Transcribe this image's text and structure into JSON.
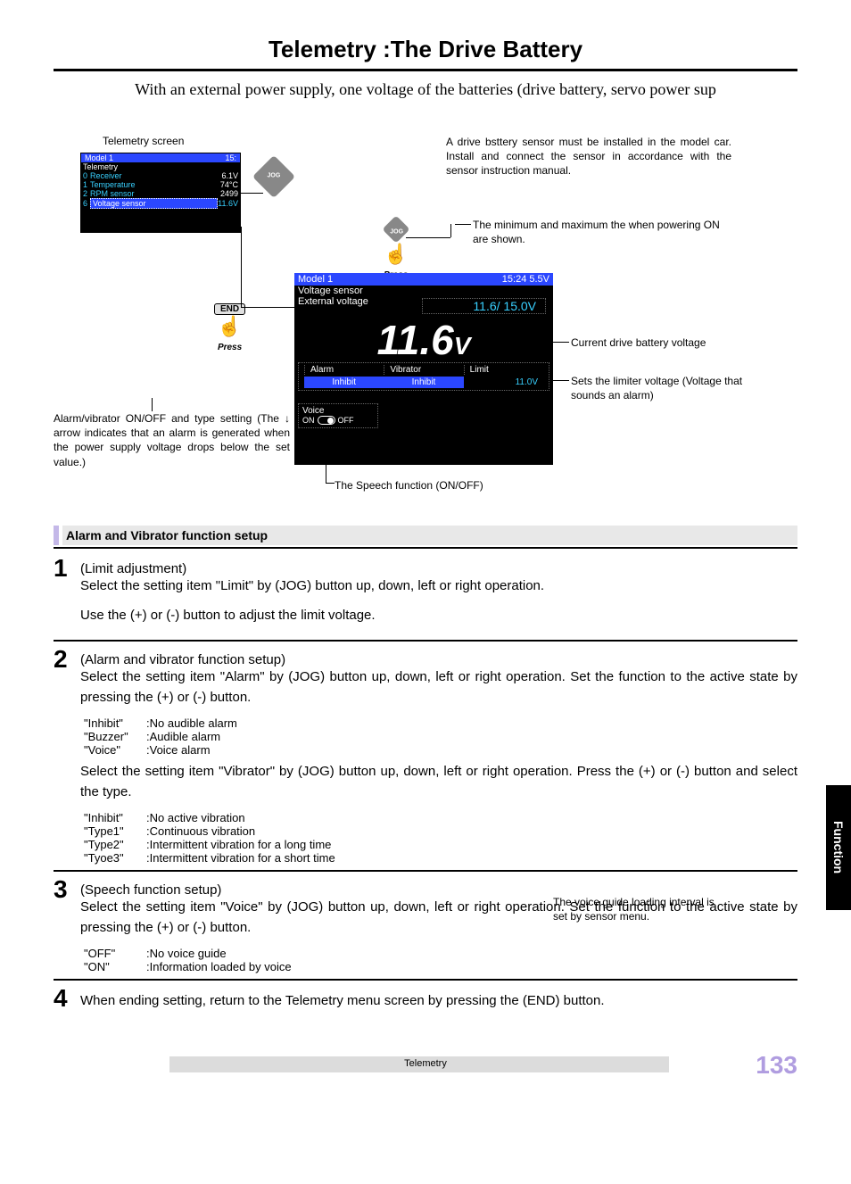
{
  "page": {
    "title": "Telemetry :The Drive Battery",
    "intro": "With an external power supply, one voltage of the batteries (drive battery, servo power sup",
    "footer_label": "Telemetry",
    "page_number": "133",
    "side_tab": "Function"
  },
  "telemetry_screen": {
    "label": "Telemetry screen",
    "header_left": "Model 1",
    "header_right": "15:",
    "header2": "Telemetry",
    "rows": [
      {
        "idx": "0",
        "label": "Receiver",
        "value": "6.1V"
      },
      {
        "idx": "1",
        "label": "Temperature",
        "value": "74°C"
      },
      {
        "idx": "2",
        "label": "RPM sensor",
        "value": "2499"
      },
      {
        "idx": "6",
        "label": "Voltage sensor",
        "value": "11.6V"
      }
    ]
  },
  "detail_screen": {
    "header_left": "Model 1",
    "header_right": "15:24 5.5V",
    "line2a": "Voltage sensor",
    "line2b": "External voltage",
    "minmax": "11.6/ 15.0V",
    "big_value": "11.6",
    "big_unit": "V",
    "cols": [
      {
        "h": "Alarm",
        "v": "Inhibit"
      },
      {
        "h": "Vibrator",
        "v": "Inhibit"
      },
      {
        "h": "Limit",
        "v": "11.0V"
      }
    ],
    "voice_label": "Voice",
    "voice_on": "ON",
    "voice_off": "OFF"
  },
  "buttons": {
    "end": "END",
    "press": "Press"
  },
  "callouts": {
    "install": "A drive bsttery sensor must be installed in the model car.\nInstall and connect the sensor in accordance with the sensor instruction manual.",
    "minmax": "The minimum and maximum the when powering ON are shown.",
    "current": "Current drive battery voltage",
    "limit": "Sets the limiter voltage\n(Voltage that sounds an alarm)",
    "speech": "The Speech function (ON/OFF)",
    "alarm_note": "Alarm/vibrator ON/OFF and type setting (The ↓ arrow indicates that an alarm is generated when the power supply voltage drops below the set value.)"
  },
  "section_header": "Alarm and Vibrator function setup",
  "steps": {
    "s1": {
      "num": "1",
      "title": "(Limit adjustment)",
      "p1": "Select the setting item \"Limit\" by (JOG) button up, down, left or right operation.",
      "p2": "Use the (+) or (-) button to adjust the limit voltage."
    },
    "s2": {
      "num": "2",
      "title": "(Alarm and vibrator function setup)",
      "p1": "Select the setting item \"Alarm\" by (JOG) button up, down, left or right operation. Set the function to the active state by pressing the (+) or (-) button.",
      "alarm_opts": [
        {
          "k": "\"Inhibit\"",
          "v": ":No audible alarm"
        },
        {
          "k": "\"Buzzer\"",
          "v": ":Audible alarm"
        },
        {
          "k": "\"Voice\"",
          "v": ":Voice alarm"
        }
      ],
      "p2": "Select the setting item \"Vibrator\" by (JOG) button up, down, left or right operation. Press the (+) or (-) button and select the type.",
      "vib_opts": [
        {
          "k": "\"Inhibit\"",
          "v": ":No active vibration"
        },
        {
          "k": "\"Type1\"",
          "v": ":Continuous vibration"
        },
        {
          "k": "\"Type2\"",
          "v": ":Intermittent vibration for a long time"
        },
        {
          "k": "\"Tyoe3\"",
          "v": ":Intermittent vibration for a short time"
        }
      ]
    },
    "s3": {
      "num": "3",
      "title": "(Speech function setup)",
      "p1": "Select the setting item \"Voice\" by (JOG) button up, down, left or right operation. Set the function to the active state by pressing the (+) or (-) button.",
      "opts": [
        {
          "k": "\"OFF\"",
          "v": ":No voice guide"
        },
        {
          "k": "\"ON\"",
          "v": ":Information loaded by voice"
        }
      ],
      "side_note": "The voice guide loading interval is set by sensor menu."
    },
    "s4": {
      "num": "4",
      "p1": "When ending setting, return to the Telemetry menu screen by pressing the (END) button."
    }
  },
  "colors": {
    "blue": "#2b47ff",
    "cyan": "#38d0ff",
    "section_stripe": "#c4b8e8",
    "section_bg": "#e8e8e8",
    "page_num": "#b09de0"
  }
}
